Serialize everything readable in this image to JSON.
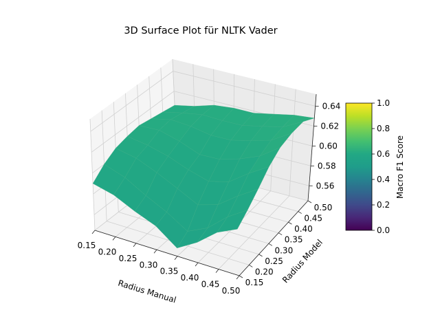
{
  "chart_data": {
    "type": "surface3d",
    "title": "3D Surface Plot für NLTK Vader",
    "xlabel": "Radius Manual",
    "ylabel": "Radius Model",
    "zlabel": "",
    "xlim": [
      0.15,
      0.5
    ],
    "ylim": [
      0.15,
      0.5
    ],
    "zlim": [
      0.545,
      0.652
    ],
    "x_ticks": [
      "0.15",
      "0.20",
      "0.25",
      "0.30",
      "0.35",
      "0.40",
      "0.45",
      "0.50"
    ],
    "y_ticks": [
      "0.15",
      "0.20",
      "0.25",
      "0.30",
      "0.35",
      "0.40",
      "0.45",
      "0.50"
    ],
    "z_ticks": [
      "0.56",
      "0.58",
      "0.60",
      "0.62",
      "0.64"
    ],
    "z_tick_values": [
      0.56,
      0.58,
      0.6,
      0.62,
      0.64
    ],
    "grid": true,
    "x": [
      0.15,
      0.2,
      0.25,
      0.3,
      0.35,
      0.4,
      0.45,
      0.5
    ],
    "y": [
      0.15,
      0.2,
      0.25,
      0.3,
      0.35,
      0.4,
      0.45,
      0.5
    ],
    "z": [
      [
        0.59,
        0.584,
        0.574,
        0.566,
        0.552,
        0.562,
        0.575,
        0.582
      ],
      [
        0.6,
        0.592,
        0.58,
        0.57,
        0.558,
        0.566,
        0.58,
        0.59
      ],
      [
        0.607,
        0.602,
        0.593,
        0.583,
        0.573,
        0.578,
        0.59,
        0.6
      ],
      [
        0.61,
        0.606,
        0.6,
        0.592,
        0.586,
        0.59,
        0.602,
        0.612
      ],
      [
        0.612,
        0.612,
        0.606,
        0.598,
        0.598,
        0.603,
        0.61,
        0.622
      ],
      [
        0.61,
        0.614,
        0.612,
        0.608,
        0.608,
        0.612,
        0.617,
        0.628
      ],
      [
        0.608,
        0.612,
        0.615,
        0.614,
        0.614,
        0.618,
        0.622,
        0.632
      ],
      [
        0.606,
        0.61,
        0.616,
        0.618,
        0.618,
        0.622,
        0.626,
        0.628
      ]
    ],
    "colormap": "viridis",
    "colorbar": {
      "label": "Macro F1 Score",
      "range": [
        0.0,
        1.0
      ],
      "ticks": [
        "0.0",
        "0.2",
        "0.4",
        "0.6",
        "0.8",
        "1.0"
      ],
      "tick_values": [
        0.0,
        0.2,
        0.4,
        0.6,
        0.8,
        1.0
      ]
    }
  }
}
